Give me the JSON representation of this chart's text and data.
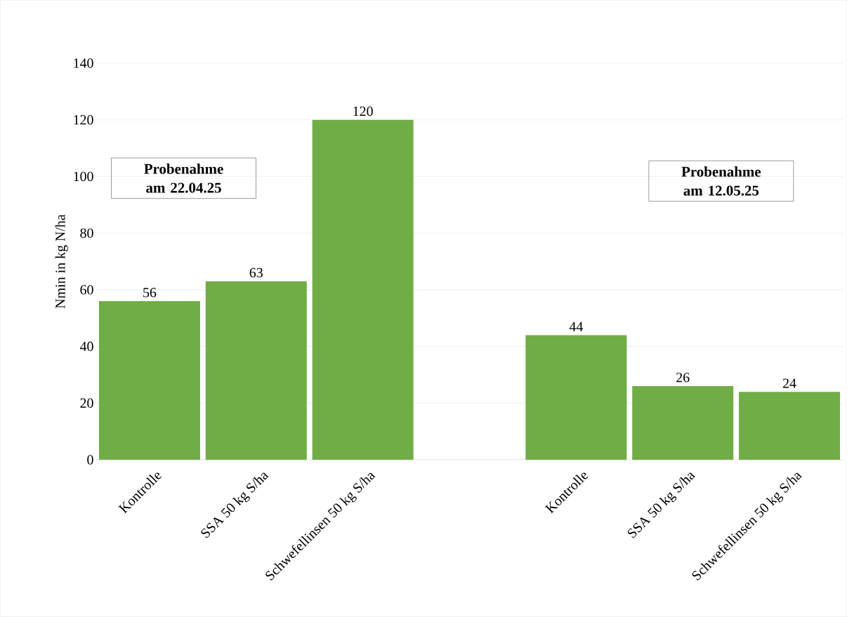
{
  "chart_data": {
    "type": "bar",
    "categories": [
      "Kontrolle",
      "SSA 50 kg S/ha",
      "Schwefellinsen 50 kg S/ha",
      null,
      "Kontrolle",
      "SSA 50 kg S/ha",
      "Schwefellinsen 50 kg S/ha"
    ],
    "values": [
      56,
      63,
      120,
      null,
      44,
      26,
      24
    ],
    "color": "#70ad47",
    "ylabel": "Nmin in kg N/ha",
    "ylim": [
      0,
      140
    ],
    "yticks": [
      0,
      20,
      40,
      60,
      80,
      100,
      120,
      140
    ],
    "grid": "y",
    "data_labels": true,
    "annotations": [
      "Probenahme am 22.04.25",
      "Probenahme am 12.05.25"
    ]
  }
}
